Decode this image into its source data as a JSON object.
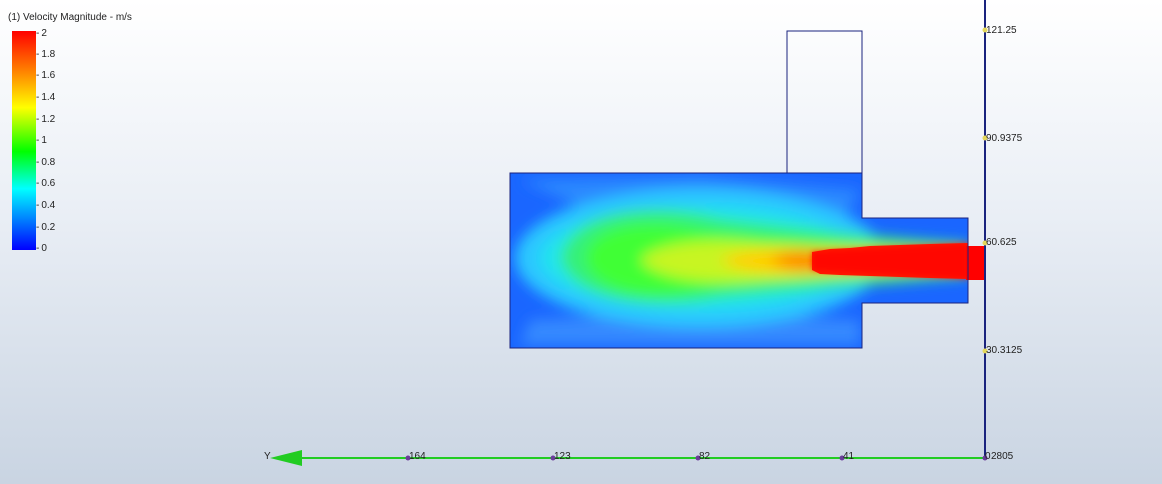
{
  "legend": {
    "title": "(1) Velocity Magnitude - m/s",
    "ticks": [
      "2",
      "1.8",
      "1.6",
      "1.4",
      "1.2",
      "1",
      "0.8",
      "0.6",
      "0.4",
      "0.2",
      "0"
    ],
    "colors": [
      "#0000ff",
      "#0080ff",
      "#00ffff",
      "#00ff00",
      "#ffff00",
      "#ff8000",
      "#ff0000"
    ]
  },
  "axes": {
    "vertical_labels": [
      "121.25",
      "90.9375",
      "60.625",
      "30.3125"
    ],
    "horizontal_labels": [
      "164",
      "123",
      "82",
      "41",
      "0"
    ],
    "horizontal_axis_name": "Y",
    "origin_suffix": "2805",
    "axis_color_horizontal": "#22cc22",
    "axis_color_vertical": "#1a237e"
  }
}
